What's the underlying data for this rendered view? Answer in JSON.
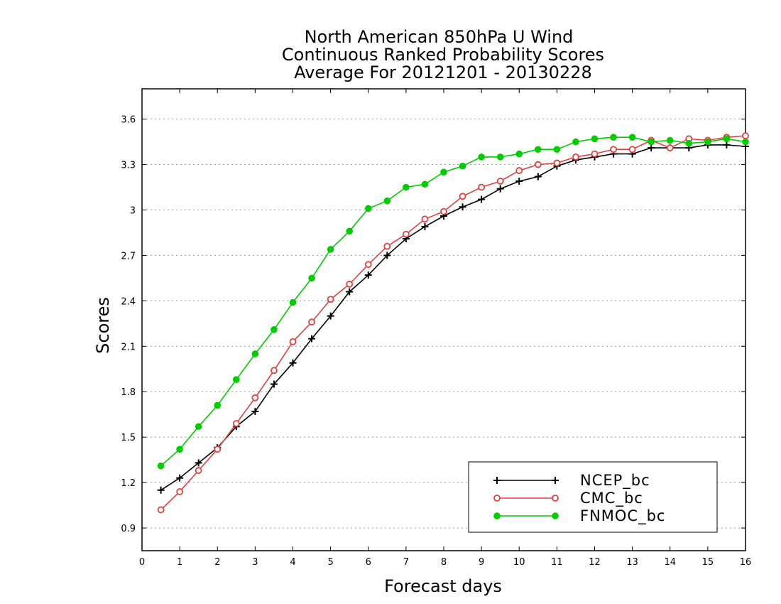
{
  "chart_data": {
    "type": "line",
    "title_lines": [
      "North American 850hPa U Wind",
      "Continuous Ranked Probability Scores",
      "Average For 20121201 - 20130228"
    ],
    "xlabel": "Forecast days",
    "ylabel": "Scores",
    "xlim": [
      0,
      16
    ],
    "ylim": [
      0.75,
      3.8
    ],
    "x_ticks": [
      "0",
      "1",
      "2",
      "3",
      "4",
      "5",
      "6",
      "7",
      "8",
      "9",
      "10",
      "11",
      "12",
      "13",
      "14",
      "15",
      "16"
    ],
    "y_ticks": [
      "0.9",
      "1.2",
      "1.5",
      "1.8",
      "2.1",
      "2.4",
      "2.7",
      "3",
      "3.3",
      "3.6"
    ],
    "grid": "horizontal dotted",
    "legend_position": "bottom-right",
    "x": [
      0.5,
      1,
      1.5,
      2,
      2.5,
      3,
      3.5,
      4,
      4.5,
      5,
      5.5,
      6,
      6.5,
      7,
      7.5,
      8,
      8.5,
      9,
      9.5,
      10,
      10.5,
      11,
      11.5,
      12,
      12.5,
      13,
      13.5,
      14,
      14.5,
      15,
      15.5,
      16
    ],
    "series": [
      {
        "name": "NCEP_bc",
        "color": "#000000",
        "marker": "plus",
        "values": [
          1.15,
          1.23,
          1.33,
          1.43,
          1.57,
          1.67,
          1.85,
          1.99,
          2.15,
          2.3,
          2.46,
          2.57,
          2.7,
          2.81,
          2.89,
          2.96,
          3.02,
          3.07,
          3.14,
          3.19,
          3.22,
          3.29,
          3.33,
          3.35,
          3.37,
          3.37,
          3.41,
          3.41,
          3.41,
          3.43,
          3.43,
          3.42
        ]
      },
      {
        "name": "CMC_bc",
        "color": "#e04040",
        "marker": "open-circle",
        "values": [
          1.02,
          1.14,
          1.28,
          1.42,
          1.59,
          1.76,
          1.94,
          2.13,
          2.26,
          2.41,
          2.51,
          2.64,
          2.76,
          2.84,
          2.94,
          2.99,
          3.09,
          3.15,
          3.19,
          3.26,
          3.3,
          3.31,
          3.35,
          3.37,
          3.4,
          3.4,
          3.46,
          3.41,
          3.47,
          3.46,
          3.48,
          3.49
        ]
      },
      {
        "name": "FNMOC_bc",
        "color": "#00cc00",
        "marker": "filled-circle",
        "values": [
          1.31,
          1.42,
          1.57,
          1.71,
          1.88,
          2.05,
          2.21,
          2.39,
          2.55,
          2.74,
          2.86,
          3.01,
          3.06,
          3.15,
          3.17,
          3.25,
          3.29,
          3.35,
          3.35,
          3.37,
          3.4,
          3.4,
          3.45,
          3.47,
          3.48,
          3.48,
          3.45,
          3.46,
          3.44,
          3.45,
          3.47,
          3.45
        ]
      }
    ]
  }
}
